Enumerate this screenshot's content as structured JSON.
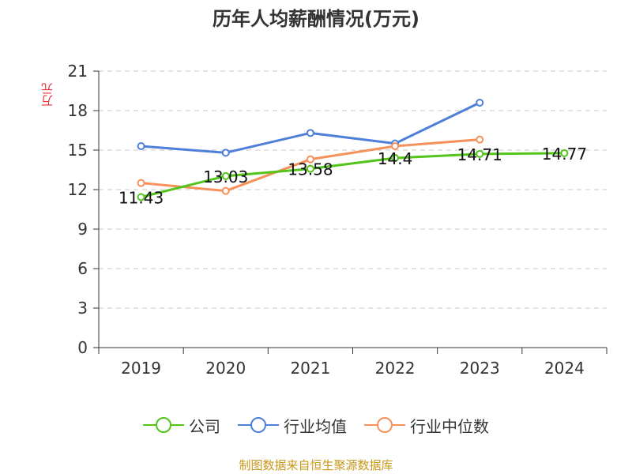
{
  "title": "历年人均薪酬情况(万元)",
  "source": "制图数据来自恒生聚源数据库",
  "colors": {
    "company": "#52c41a",
    "industry_mean": "#4e7fd9",
    "industry_median": "#f7915c",
    "unit_label": "#e8343a",
    "source_text": "#c8981c",
    "grid": "#c8c8c8",
    "axis": "#333333"
  },
  "chart_data": {
    "type": "line",
    "title": "历年人均薪酬情况(万元)",
    "ylabel": "万元",
    "xlabel": "",
    "categories": [
      "2019",
      "2020",
      "2021",
      "2022",
      "2023",
      "2024"
    ],
    "ylim": [
      0,
      21
    ],
    "yticks": [
      0,
      3,
      6,
      9,
      12,
      15,
      18,
      21
    ],
    "grid": true,
    "legend_position": "bottom",
    "series": [
      {
        "name": "公司",
        "color_key": "company",
        "values": [
          11.43,
          13.03,
          13.58,
          14.4,
          14.71,
          14.77
        ],
        "labels": [
          "11.43",
          "13.03",
          "13.58",
          "14.4",
          "14.71",
          "14.77"
        ]
      },
      {
        "name": "行业均值",
        "color_key": "industry_mean",
        "values": [
          15.3,
          14.8,
          16.3,
          15.5,
          18.6,
          null
        ]
      },
      {
        "name": "行业中位数",
        "color_key": "industry_median",
        "values": [
          12.5,
          11.9,
          14.3,
          15.3,
          15.8,
          null
        ]
      }
    ]
  }
}
